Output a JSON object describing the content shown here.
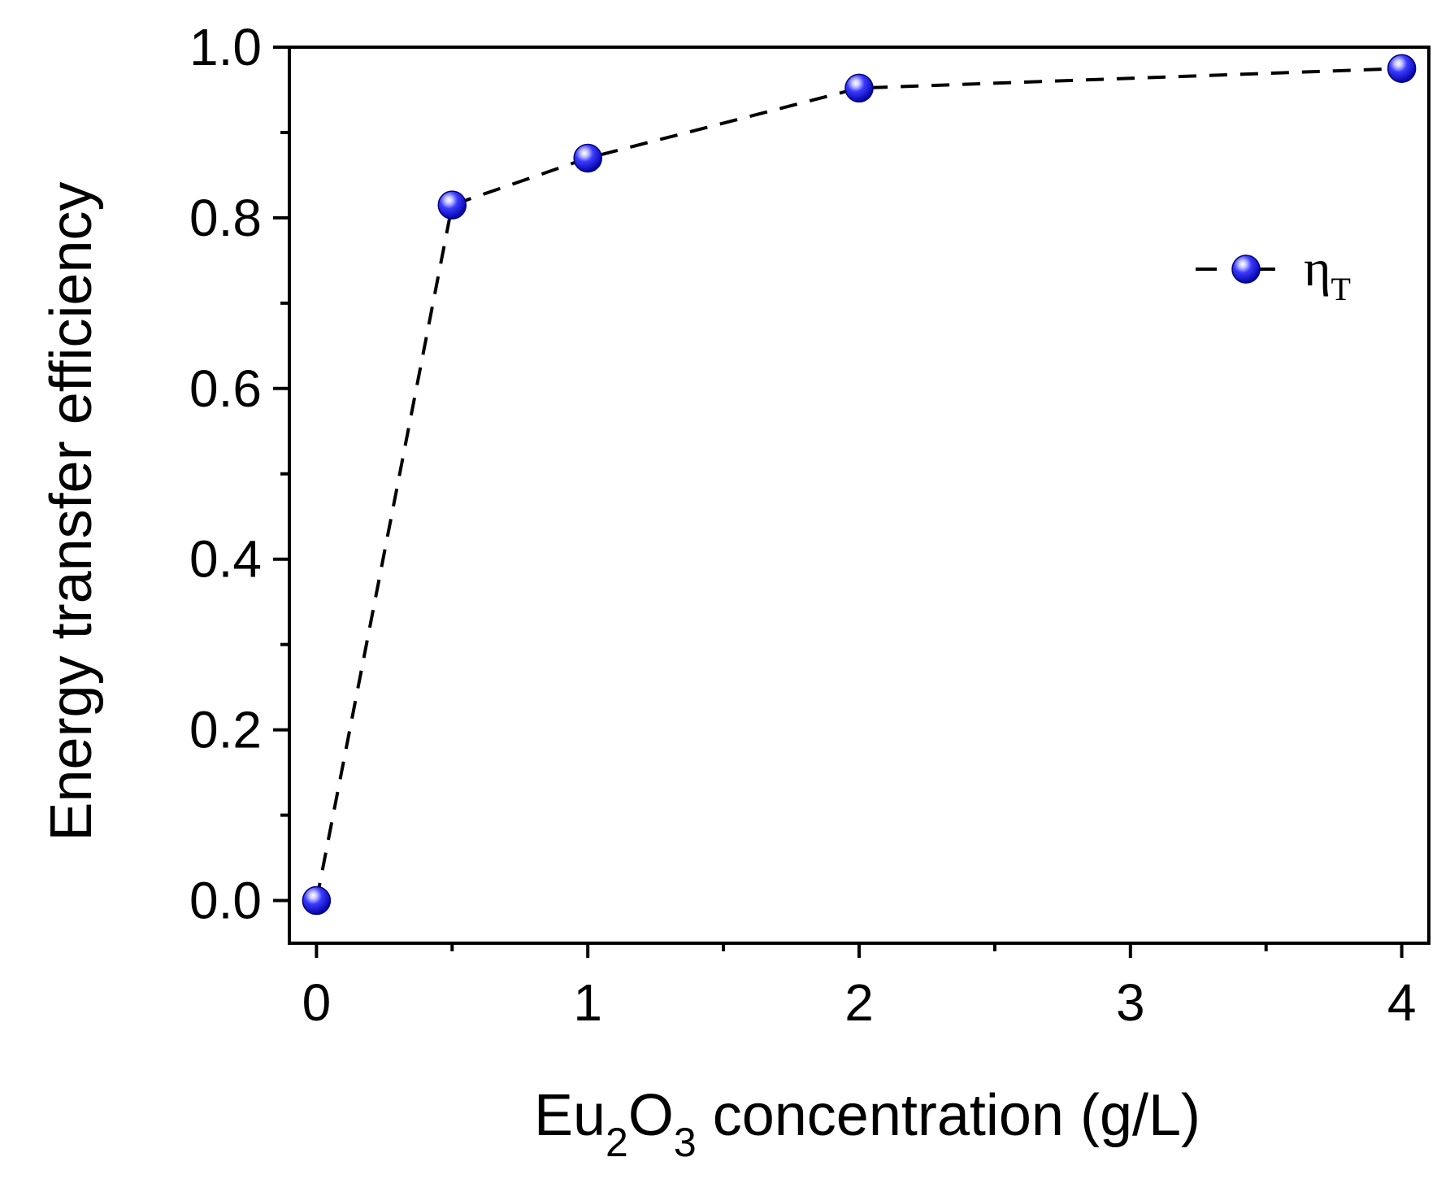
{
  "chart_data": {
    "type": "line",
    "title": "",
    "xlabel": {
      "parts": [
        "Eu",
        "2",
        "O",
        "3",
        " concentration (g/L)"
      ]
    },
    "ylabel": "Energy transfer efficiency",
    "xlim": [
      -0.1,
      4.1
    ],
    "ylim": [
      -0.05,
      1.0
    ],
    "x_ticks": [
      0,
      1,
      2,
      3,
      4
    ],
    "x_tick_labels": [
      "0",
      "1",
      "2",
      "3",
      "4"
    ],
    "x_minor_ticks": [
      0.5,
      1.5,
      2.5,
      3.5
    ],
    "y_ticks": [
      0.0,
      0.2,
      0.4,
      0.6,
      0.8,
      1.0
    ],
    "y_tick_labels": [
      "0.0",
      "0.2",
      "0.4",
      "0.6",
      "0.8",
      "1.0"
    ],
    "y_minor_ticks": [
      0.1,
      0.3,
      0.5,
      0.7,
      0.9
    ],
    "grid": false,
    "legend_position": "top-right",
    "series": [
      {
        "name": "ηT",
        "legend_label": {
          "main": "η",
          "sub": "T"
        },
        "line_style": "dashed",
        "marker": "sphere",
        "color": "#1a1aff",
        "x": [
          0,
          0.5,
          1,
          2,
          4
        ],
        "y": [
          0.0,
          0.815,
          0.87,
          0.952,
          0.975
        ]
      }
    ]
  }
}
